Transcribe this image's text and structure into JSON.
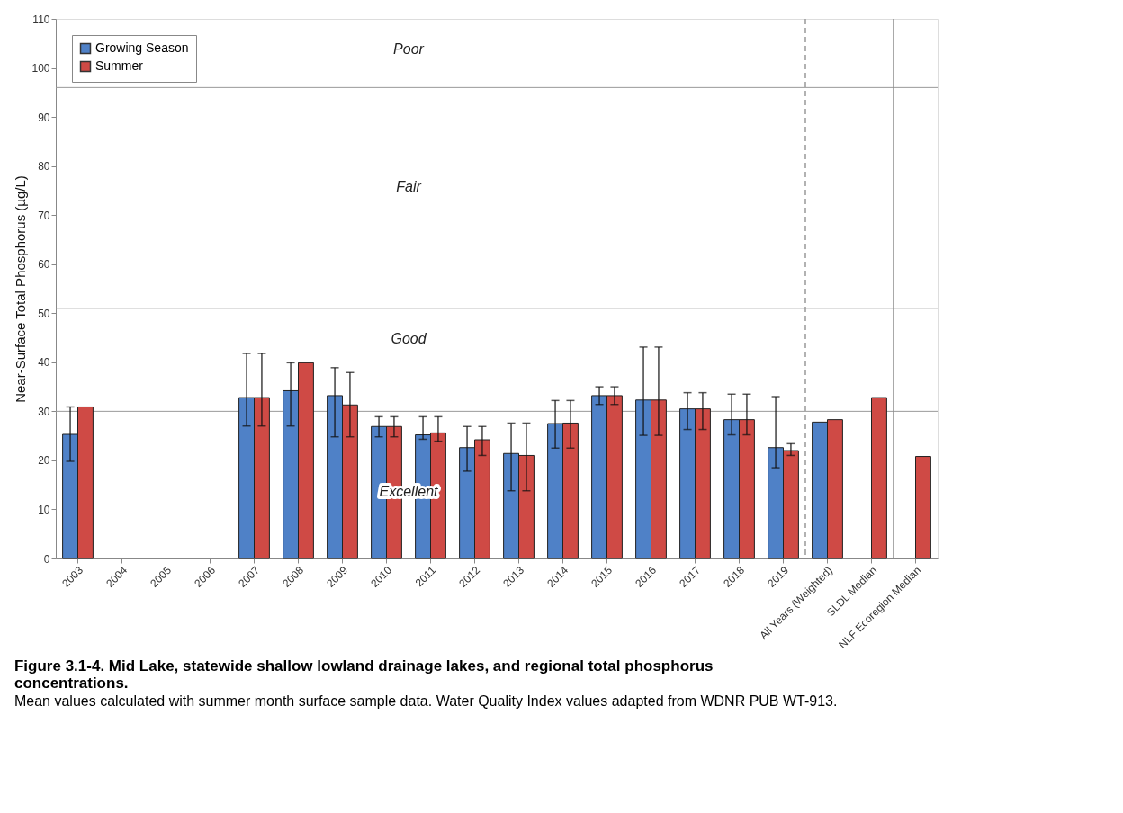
{
  "chart_data": {
    "type": "bar",
    "title": "Figure 3.1-4.  Mid Lake, statewide shallow lowland drainage lakes, and regional total phosphorus concentrations.",
    "subtitle": "Mean values calculated with summer month surface sample data.  Water Quality Index values adapted from WDNR PUB WT-913.",
    "ylabel": "Near-Surface Total Phosphorus (µg/L)",
    "categories": [
      "2003",
      "2004",
      "2005",
      "2006",
      "2007",
      "2008",
      "2009",
      "2010",
      "2011",
      "2012",
      "2013",
      "2014",
      "2015",
      "2016",
      "2017",
      "2018",
      "2019",
      "All Years (Weighted)",
      "SLDL Median",
      "NLF Ecoregion Median"
    ],
    "series": [
      {
        "name": "Growing Season",
        "color": "#4f81c7",
        "values": [
          25.3,
          null,
          null,
          null,
          32.8,
          34.2,
          33.2,
          26.9,
          25.2,
          22.6,
          21.4,
          27.5,
          33.2,
          32.3,
          30.5,
          28.3,
          22.6,
          27.8,
          null,
          null
        ],
        "errors": [
          [
            19.8,
            30.9
          ],
          null,
          null,
          null,
          [
            27.0,
            41.8
          ],
          [
            27.0,
            39.9
          ],
          [
            24.8,
            38.9
          ],
          [
            24.8,
            28.9
          ],
          [
            24.3,
            28.9
          ],
          [
            17.8,
            26.9
          ],
          [
            13.8,
            27.6
          ],
          [
            22.5,
            32.2
          ],
          [
            31.4,
            35.0
          ],
          [
            25.1,
            43.1
          ],
          [
            26.3,
            33.8
          ],
          [
            25.2,
            33.5
          ],
          [
            18.5,
            33.0
          ],
          null,
          null,
          null
        ]
      },
      {
        "name": "Summer",
        "color": "#cf4a45",
        "values": [
          30.9,
          null,
          null,
          null,
          32.8,
          39.9,
          31.3,
          26.9,
          25.6,
          24.2,
          21.0,
          27.6,
          33.2,
          32.3,
          30.5,
          28.3,
          22.0,
          28.3,
          32.8,
          20.8
        ],
        "errors": [
          null,
          null,
          null,
          null,
          [
            27.0,
            41.8
          ],
          null,
          [
            24.8,
            37.9
          ],
          [
            24.8,
            28.9
          ],
          [
            23.9,
            28.9
          ],
          [
            21.0,
            26.9
          ],
          [
            13.8,
            27.6
          ],
          [
            22.5,
            32.2
          ],
          [
            31.4,
            35.0
          ],
          [
            25.1,
            43.1
          ],
          [
            26.3,
            33.8
          ],
          [
            25.2,
            33.5
          ],
          [
            21.0,
            23.4
          ],
          null,
          null,
          null
        ]
      }
    ],
    "ylim": [
      0,
      110
    ],
    "yticks": [
      0,
      10,
      20,
      30,
      40,
      50,
      60,
      70,
      80,
      90,
      100,
      110
    ],
    "annotations": [
      "Poor",
      "Fair",
      "Good",
      "Excellent"
    ],
    "ref_lines": [
      {
        "axis": "y",
        "value": 30,
        "color": "#999999"
      },
      {
        "axis": "y",
        "value": 51,
        "color": "#999999"
      },
      {
        "axis": "y",
        "value": 96,
        "color": "#999999"
      },
      {
        "axis": "x",
        "value": "All Years (Weighted)",
        "line_style": "dashed",
        "color": "#999999"
      },
      {
        "axis": "x",
        "value": "NLF Ecoregion Median",
        "line_style": "solid",
        "color": "#8c8c8c"
      }
    ],
    "legend": "top left"
  }
}
